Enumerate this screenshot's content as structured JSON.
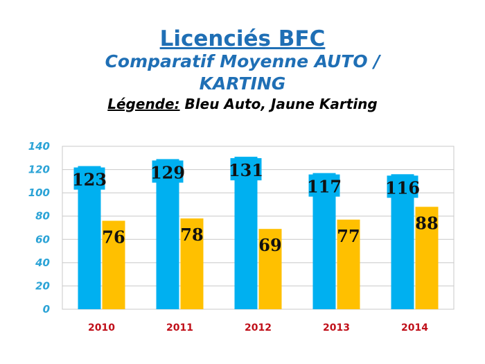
{
  "title": "Licenciés BFC",
  "subtitle_line1": "Comparatif  Moyenne  AUTO /",
  "subtitle_line2": "KARTING",
  "legend_key": "Légende:",
  "legend_text": " Bleu Auto, Jaune Karting",
  "colors": {
    "auto": "#00b0f0",
    "karting": "#ffc000",
    "grid": "#c8c8c8",
    "ytick": "#2ba3d6",
    "xtick": "#c0101a"
  },
  "chart_data": {
    "type": "bar",
    "categories": [
      "2010",
      "2011",
      "2012",
      "2013",
      "2014"
    ],
    "series": [
      {
        "values": [
          123,
          129,
          131,
          117,
          116
        ]
      },
      {
        "values": [
          76,
          78,
          69,
          77,
          88
        ]
      }
    ],
    "data_labels": [
      [
        "123",
        "129",
        "131",
        "117",
        "116"
      ],
      [
        "76",
        "78",
        "69",
        "77",
        "88"
      ]
    ],
    "ylim": [
      0,
      140
    ],
    "yticks": [
      "0",
      "20",
      "40",
      "60",
      "80",
      "100",
      "120",
      "140"
    ],
    "grid": true
  }
}
